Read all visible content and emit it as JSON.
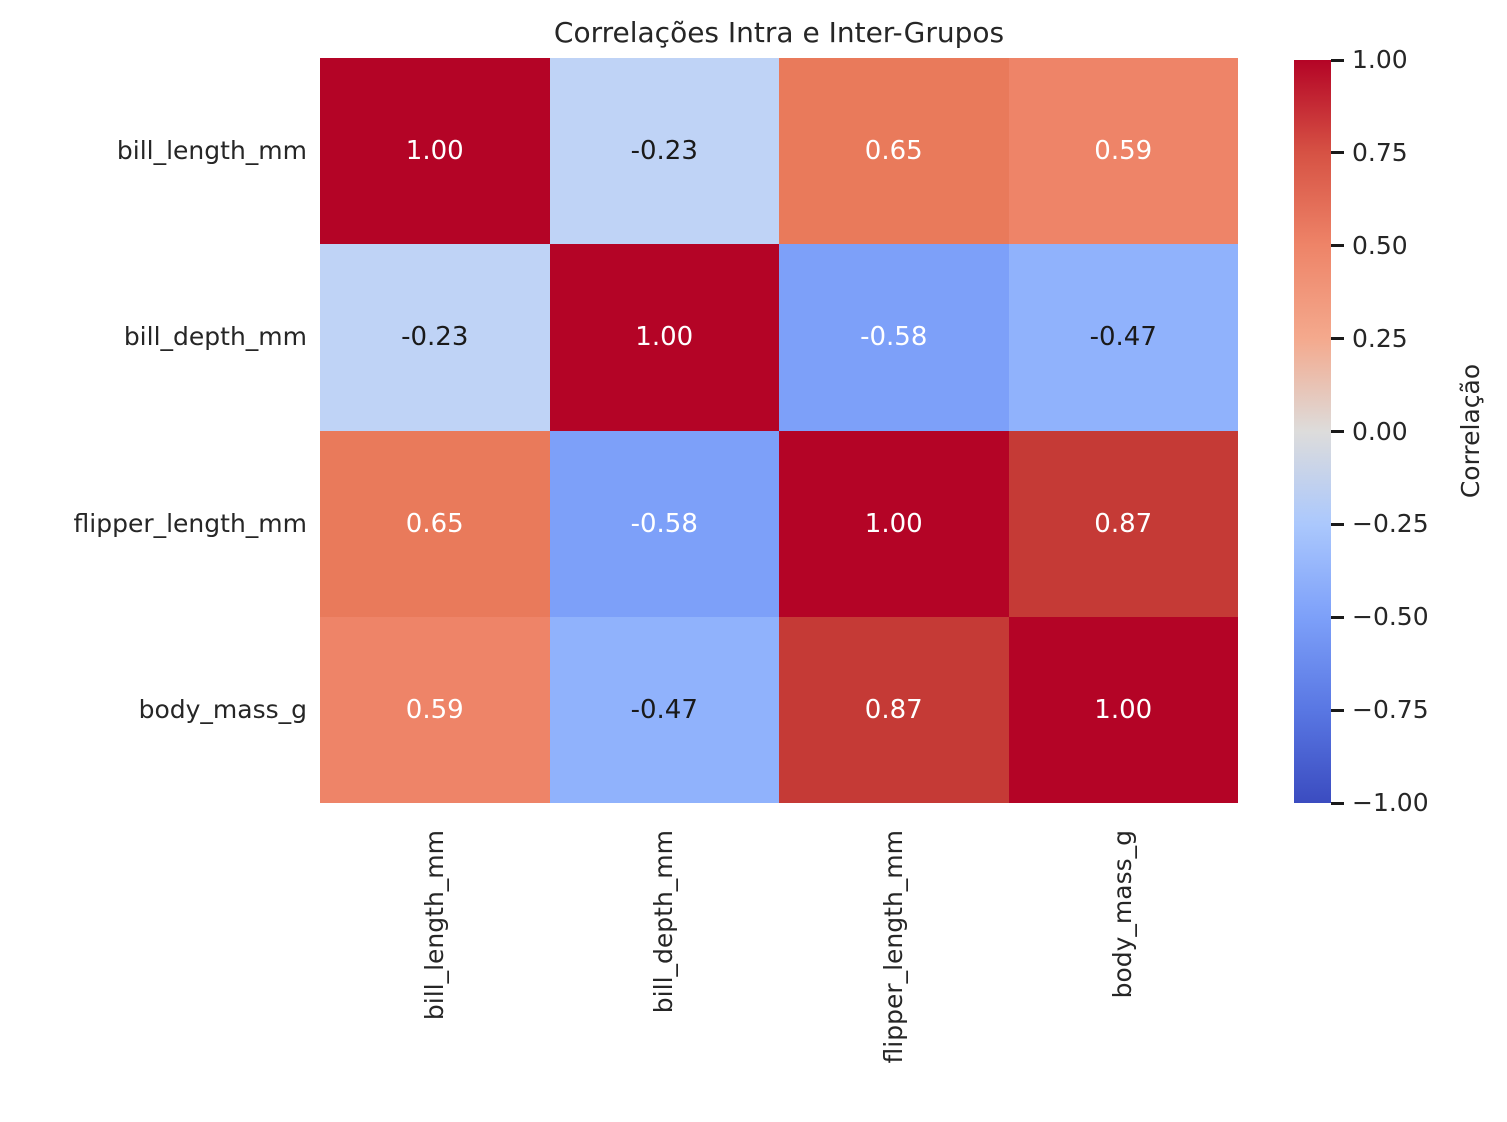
{
  "title": "Correlações Intra e Inter-Grupos",
  "colors": {
    "background": "#ffffff",
    "text": "#262626",
    "tick_mark": "#1a1a1a",
    "annot_light": "#ffffff",
    "annot_dark": "#1a1a1a",
    "colorbar_gradient": [
      "#b40426",
      "#d65244",
      "#ee8468",
      "#f4a98d",
      "#dddcdb",
      "#abc8fd",
      "#7da0f9",
      "#5977e3",
      "#3b4cc0"
    ]
  },
  "chart_data": {
    "type": "heatmap",
    "title": "Correlações Intra e Inter-Grupos",
    "categories": [
      "bill_length_mm",
      "bill_depth_mm",
      "flipper_length_mm",
      "body_mass_g"
    ],
    "matrix": [
      [
        1.0,
        -0.23,
        0.65,
        0.59
      ],
      [
        -0.23,
        1.0,
        -0.58,
        -0.47
      ],
      [
        0.65,
        -0.58,
        1.0,
        0.87
      ],
      [
        0.59,
        -0.47,
        0.87,
        1.0
      ]
    ],
    "cell_labels": [
      [
        "1.00",
        "-0.23",
        "0.65",
        "0.59"
      ],
      [
        "-0.23",
        "1.00",
        "-0.58",
        "-0.47"
      ],
      [
        "0.65",
        "-0.58",
        "1.00",
        "0.87"
      ],
      [
        "0.59",
        "-0.47",
        "0.87",
        "1.00"
      ]
    ],
    "cell_colors": [
      [
        "#b40426",
        "#bfd3f6",
        "#e97a5b",
        "#ee8468"
      ],
      [
        "#bfd3f6",
        "#b40426",
        "#7da0f9",
        "#90b2fc"
      ],
      [
        "#e97a5b",
        "#7da0f9",
        "#b40426",
        "#c53a36"
      ],
      [
        "#ee8468",
        "#90b2fc",
        "#c53a36",
        "#b40426"
      ]
    ],
    "cell_text_colors": [
      [
        "#ffffff",
        "#1a1a1a",
        "#ffffff",
        "#ffffff"
      ],
      [
        "#1a1a1a",
        "#ffffff",
        "#ffffff",
        "#1a1a1a"
      ],
      [
        "#ffffff",
        "#ffffff",
        "#ffffff",
        "#ffffff"
      ],
      [
        "#ffffff",
        "#1a1a1a",
        "#ffffff",
        "#ffffff"
      ]
    ],
    "colormap": "coolwarm",
    "vmin": -1,
    "vmax": 1,
    "grid": false,
    "colorbar": {
      "label": "Correlação",
      "ticks": [
        "1.00",
        "0.75",
        "0.50",
        "0.25",
        "0.00",
        "−0.25",
        "−0.50",
        "−0.75",
        "−1.00"
      ],
      "position": "right"
    }
  }
}
